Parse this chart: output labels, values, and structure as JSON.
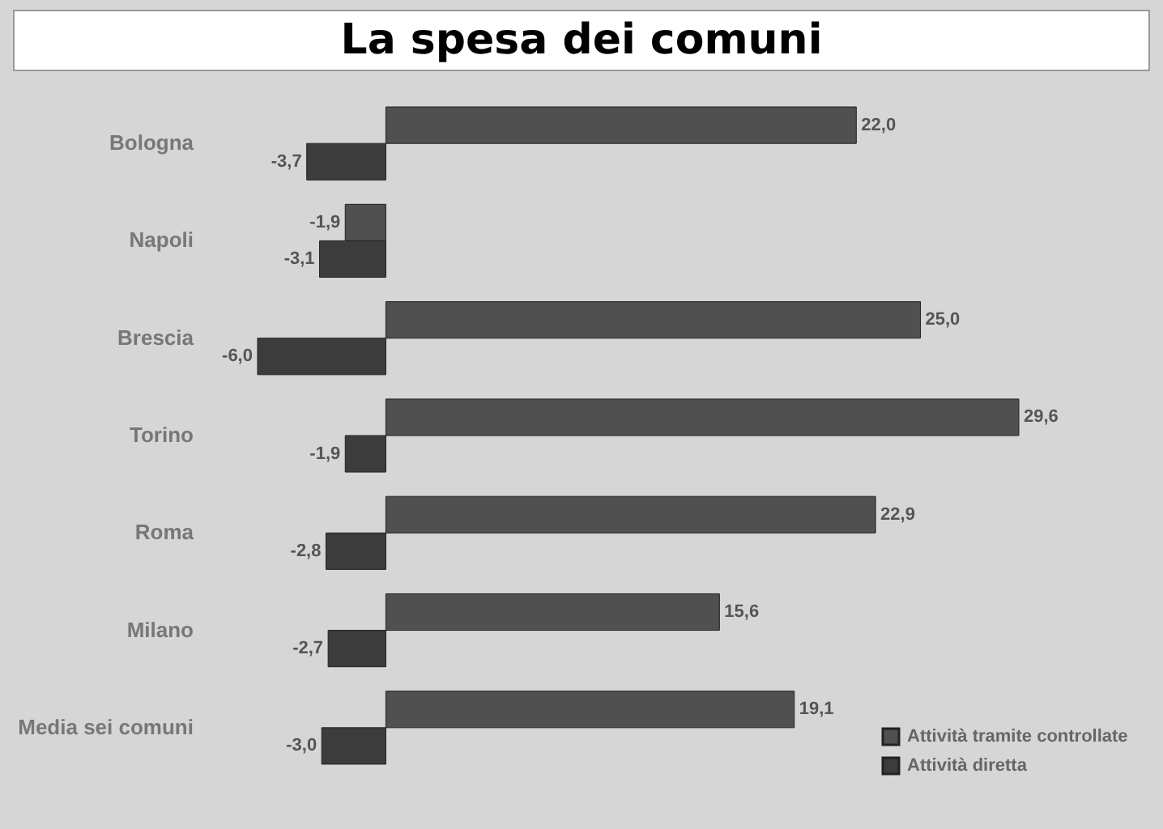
{
  "chart_data": {
    "type": "bar",
    "orientation": "horizontal",
    "title": "La spesa dei comuni",
    "categories": [
      "Bologna",
      "Napoli",
      "Brescia",
      "Torino",
      "Roma",
      "Milano",
      "Media sei comuni"
    ],
    "series": [
      {
        "name": "Attività tramite controllate",
        "color": "#505050",
        "values": [
          22.0,
          -1.9,
          25.0,
          29.6,
          22.9,
          15.6,
          19.1
        ],
        "value_labels": [
          "22,0",
          "-1,9",
          "25,0",
          "29,6",
          "22,9",
          "15,6",
          "19,1"
        ]
      },
      {
        "name": "Attività diretta",
        "color": "#3c3c3c",
        "values": [
          -3.7,
          -3.1,
          -6.0,
          -1.9,
          -2.8,
          -2.7,
          -3.0
        ],
        "value_labels": [
          "-3,7",
          "-3,1",
          "-6,0",
          "-1,9",
          "-2,8",
          "-2,7",
          "-3,0"
        ]
      }
    ],
    "legend": "bottom right",
    "tick_labels": "y"
  }
}
